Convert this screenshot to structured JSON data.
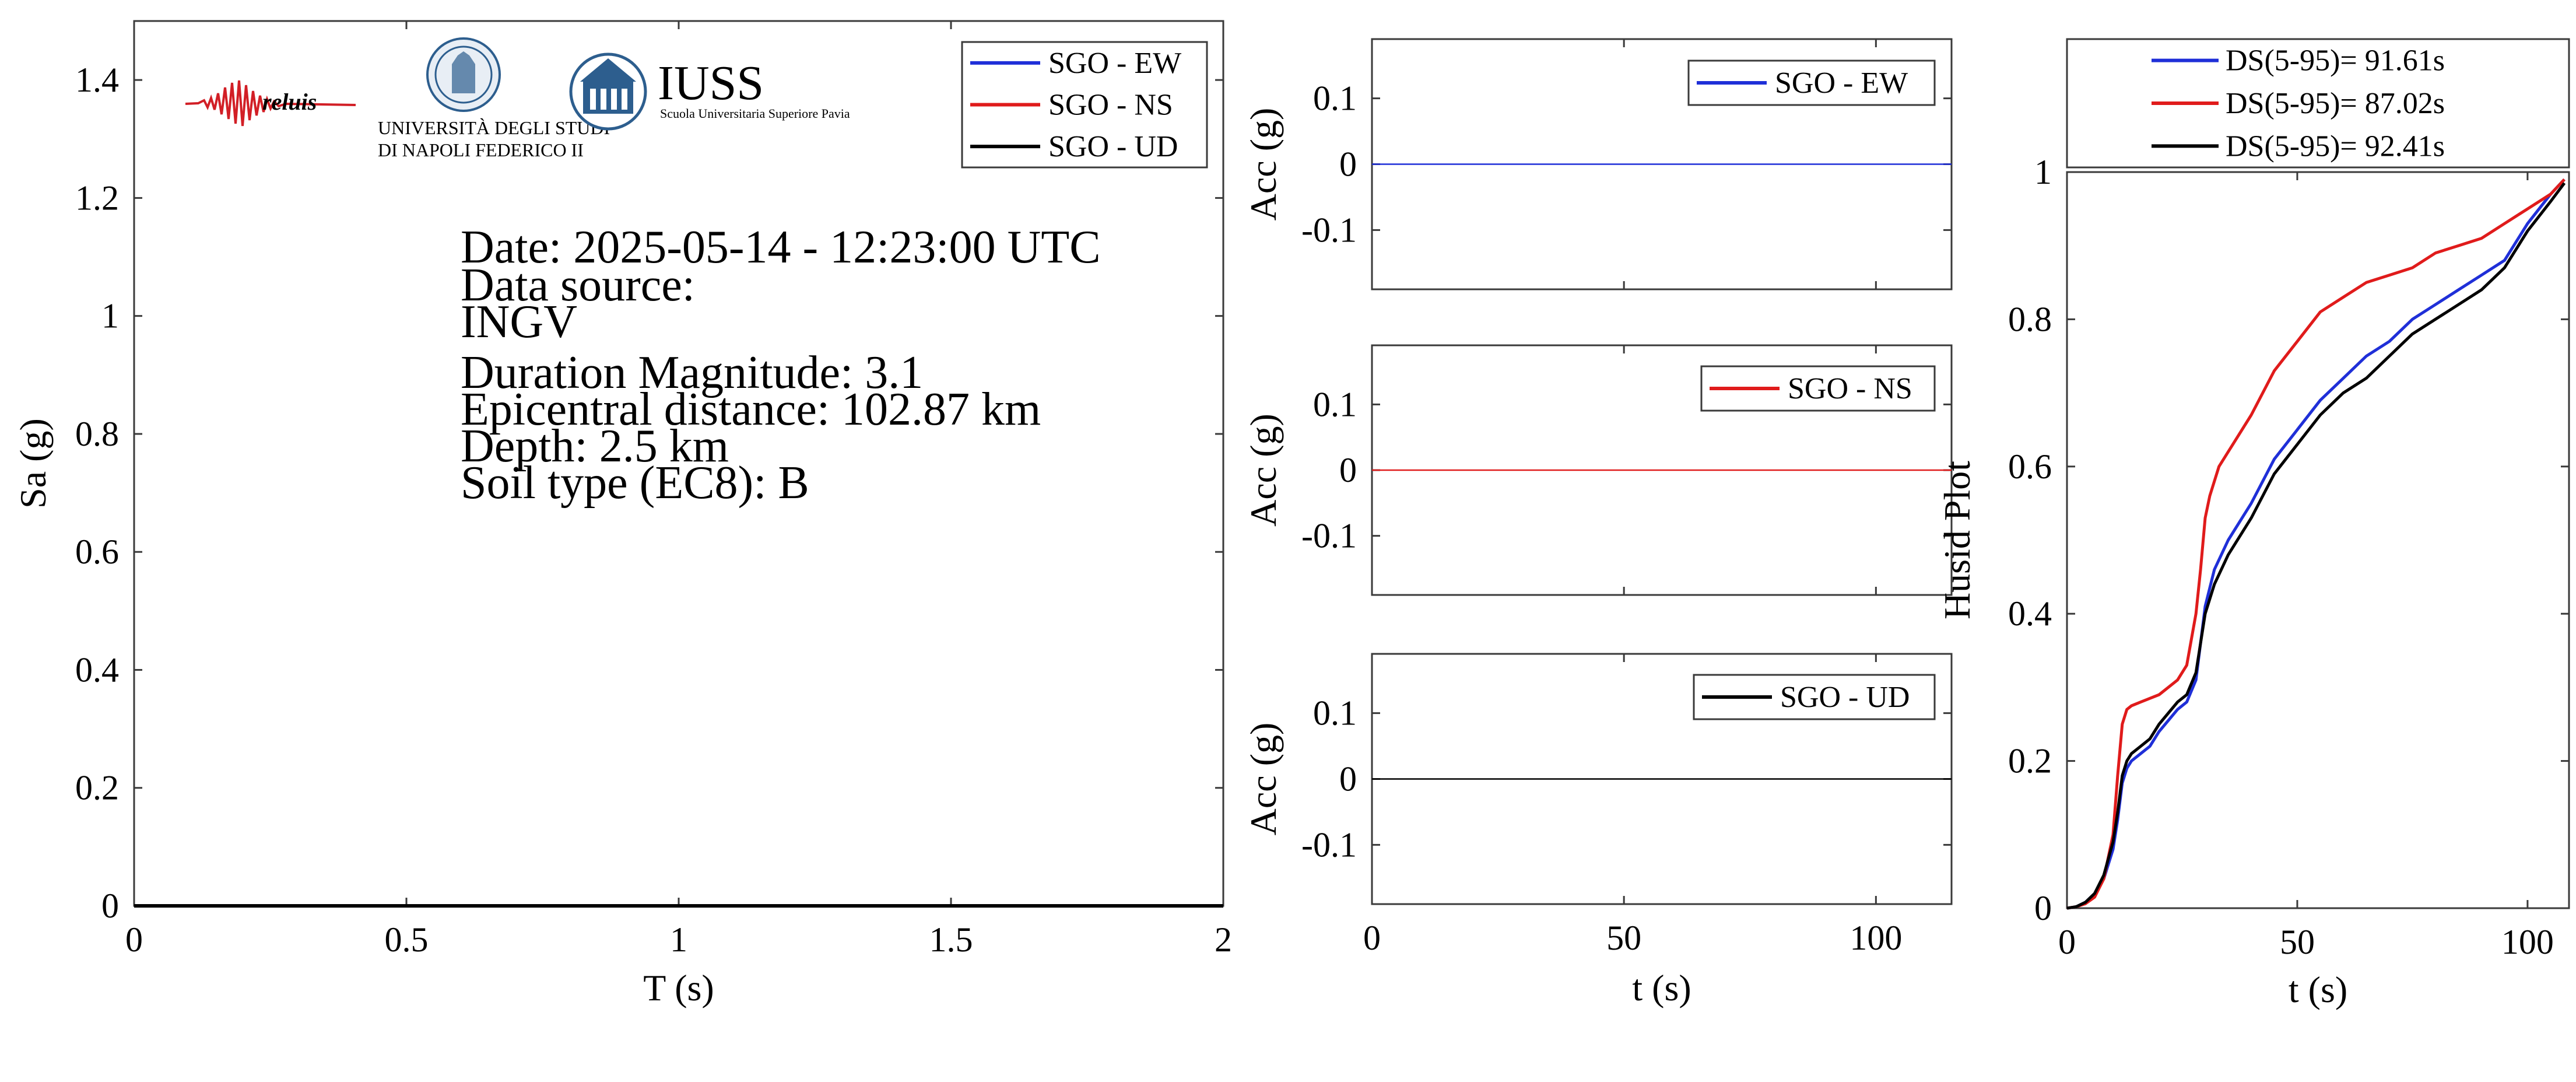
{
  "colors": {
    "ew": "#1f2fd8",
    "ns": "#e01b1b",
    "ud": "#000000",
    "iuss": "#2d5e8e",
    "reluis": "#d21f26"
  },
  "logos": {
    "reluis": "reluis",
    "unina_line1": "UNIVERSITÀ DEGLI STUDI",
    "unina_line2": "DI NAPOLI FEDERICO II",
    "iuss_title": "IUSS",
    "iuss_subtitle": "Scuola Universitaria Superiore Pavia"
  },
  "info": {
    "date": "Date: 2025-05-14 - 12:23:00 UTC",
    "source_label": "Data source:",
    "source_value": "INGV",
    "magnitude": "Duration Magnitude: 3.1",
    "distance": "Epicentral distance: 102.87 km",
    "depth": "Depth: 2.5 km",
    "soil": "Soil type (EC8): B"
  },
  "chart_data": [
    {
      "type": "line",
      "id": "spectrum",
      "xlabel": "T (s)",
      "ylabel": "Sa (g)",
      "xlim": [
        0,
        2
      ],
      "ylim": [
        0,
        1.5
      ],
      "xticks": [
        0,
        0.5,
        1,
        1.5,
        2
      ],
      "xtick_labels": [
        "0",
        "0.5",
        "1",
        "1.5",
        "2"
      ],
      "yticks": [
        0,
        0.2,
        0.4,
        0.6,
        0.8,
        1,
        1.2,
        1.4
      ],
      "ytick_labels": [
        "0",
        "0.2",
        "0.4",
        "0.6",
        "0.8",
        "1",
        "1.2",
        "1.4"
      ],
      "legend": "top-right",
      "grid": false,
      "series": [
        {
          "name": "SGO - EW",
          "color": "#1f2fd8",
          "x": [
            0,
            0.5,
            1,
            1.5,
            2
          ],
          "y": [
            0,
            0,
            0,
            0,
            0
          ]
        },
        {
          "name": "SGO - NS",
          "color": "#e01b1b",
          "x": [
            0,
            0.5,
            1,
            1.5,
            2
          ],
          "y": [
            0,
            0,
            0,
            0,
            0
          ]
        },
        {
          "name": "SGO - UD",
          "color": "#000000",
          "x": [
            0,
            0.5,
            1,
            1.5,
            2
          ],
          "y": [
            0,
            0,
            0,
            0,
            0
          ]
        }
      ]
    },
    {
      "type": "line",
      "id": "acc_ew",
      "xlabel": "",
      "ylabel": "Acc (g)",
      "xlim": [
        0,
        115
      ],
      "ylim": [
        -0.19,
        0.19
      ],
      "xticks": [
        0,
        50,
        100
      ],
      "xtick_labels": [],
      "yticks": [
        0.1,
        0,
        -0.1
      ],
      "ytick_labels": [
        "0.1",
        "0",
        "-0.1"
      ],
      "legend": "top-right",
      "series": [
        {
          "name": "SGO - EW",
          "color": "#1f2fd8",
          "x": [
            0,
            115
          ],
          "y": [
            0,
            0
          ]
        }
      ]
    },
    {
      "type": "line",
      "id": "acc_ns",
      "xlabel": "",
      "ylabel": "Acc (g)",
      "xlim": [
        0,
        115
      ],
      "ylim": [
        -0.19,
        0.19
      ],
      "xticks": [
        0,
        50,
        100
      ],
      "xtick_labels": [],
      "yticks": [
        0.1,
        0,
        -0.1
      ],
      "ytick_labels": [
        "0.1",
        "0",
        "-0.1"
      ],
      "legend": "top-right",
      "series": [
        {
          "name": "SGO - NS",
          "color": "#e01b1b",
          "x": [
            0,
            115
          ],
          "y": [
            0,
            0
          ]
        }
      ]
    },
    {
      "type": "line",
      "id": "acc_ud",
      "xlabel": "t (s)",
      "ylabel": "Acc (g)",
      "xlim": [
        0,
        115
      ],
      "ylim": [
        -0.19,
        0.19
      ],
      "xticks": [
        0,
        50,
        100
      ],
      "xtick_labels": [
        "0",
        "50",
        "100"
      ],
      "yticks": [
        0.1,
        0,
        -0.1
      ],
      "ytick_labels": [
        "0.1",
        "0",
        "-0.1"
      ],
      "legend": "top-right",
      "series": [
        {
          "name": "SGO - UD",
          "color": "#000000",
          "x": [
            0,
            115
          ],
          "y": [
            0,
            0
          ]
        }
      ]
    },
    {
      "type": "line",
      "id": "husid",
      "xlabel": "t (s)",
      "ylabel": "Husid Plot",
      "xlim": [
        0,
        109
      ],
      "ylim": [
        0,
        1
      ],
      "xticks": [
        0,
        50,
        100
      ],
      "xtick_labels": [
        "0",
        "50",
        "100"
      ],
      "yticks": [
        0,
        0.2,
        0.4,
        0.6,
        0.8,
        1
      ],
      "ytick_labels": [
        "0",
        "0.2",
        "0.4",
        "0.6",
        "0.8",
        "1"
      ],
      "legend": "top-outside",
      "series": [
        {
          "name": "DS(5-95)= 91.61s",
          "color": "#1f2fd8",
          "x": [
            0,
            2,
            4,
            6,
            8,
            10,
            11,
            12,
            13,
            14,
            16,
            18,
            20,
            24,
            26,
            28,
            30,
            32,
            35,
            40,
            45,
            50,
            55,
            60,
            65,
            70,
            75,
            80,
            85,
            90,
            95,
            100,
            105,
            108
          ],
          "y": [
            0,
            0.002,
            0.008,
            0.02,
            0.04,
            0.08,
            0.12,
            0.17,
            0.19,
            0.2,
            0.21,
            0.22,
            0.24,
            0.27,
            0.28,
            0.31,
            0.41,
            0.46,
            0.5,
            0.55,
            0.61,
            0.65,
            0.69,
            0.72,
            0.75,
            0.77,
            0.8,
            0.82,
            0.84,
            0.86,
            0.88,
            0.93,
            0.97,
            0.99
          ]
        },
        {
          "name": "DS(5-95)= 87.02s",
          "color": "#e01b1b",
          "x": [
            0,
            2,
            4,
            6,
            8,
            10,
            11,
            12,
            13,
            14,
            16,
            20,
            24,
            26,
            28,
            29,
            30,
            31,
            33,
            35,
            40,
            45,
            50,
            55,
            60,
            65,
            70,
            75,
            80,
            85,
            90,
            95,
            100,
            105,
            108
          ],
          "y": [
            0,
            0.002,
            0.006,
            0.015,
            0.04,
            0.1,
            0.18,
            0.25,
            0.27,
            0.275,
            0.28,
            0.29,
            0.31,
            0.33,
            0.4,
            0.46,
            0.53,
            0.56,
            0.6,
            0.62,
            0.67,
            0.73,
            0.77,
            0.81,
            0.83,
            0.85,
            0.86,
            0.87,
            0.89,
            0.9,
            0.91,
            0.93,
            0.95,
            0.97,
            0.99
          ]
        },
        {
          "name": "DS(5-95)= 92.41s",
          "color": "#000000",
          "x": [
            0,
            2,
            4,
            6,
            8,
            10,
            11,
            12,
            13,
            14,
            16,
            18,
            20,
            24,
            26,
            28,
            30,
            32,
            35,
            40,
            45,
            50,
            55,
            60,
            65,
            70,
            75,
            80,
            85,
            90,
            95,
            100,
            105,
            108
          ],
          "y": [
            0,
            0.002,
            0.008,
            0.02,
            0.045,
            0.09,
            0.13,
            0.18,
            0.2,
            0.21,
            0.22,
            0.23,
            0.25,
            0.28,
            0.29,
            0.32,
            0.4,
            0.44,
            0.48,
            0.53,
            0.59,
            0.63,
            0.67,
            0.7,
            0.72,
            0.75,
            0.78,
            0.8,
            0.82,
            0.84,
            0.87,
            0.92,
            0.96,
            0.985
          ]
        }
      ]
    }
  ]
}
